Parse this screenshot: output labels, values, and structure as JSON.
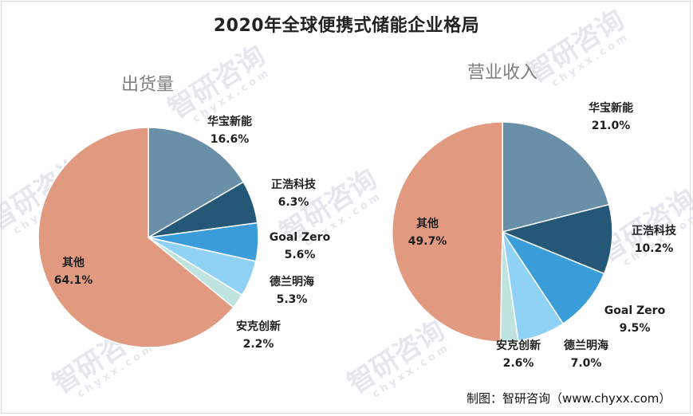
{
  "title": "2020年全球便携式储能企业格局",
  "source": "制图：智研咨询（www.chyxx.com）",
  "watermark": {
    "cn": "智研咨询",
    "en": "chyxx.com"
  },
  "chart_data": [
    {
      "type": "pie",
      "title": "出货量",
      "start_angle_deg": 0,
      "direction": "clockwise",
      "slices": [
        {
          "label": "华宝新能",
          "value": 16.6,
          "display": "16.6%",
          "color": "#6a8fa8"
        },
        {
          "label": "正浩科技",
          "value": 6.3,
          "display": "6.3%",
          "color": "#255777"
        },
        {
          "label": "Goal Zero",
          "value": 5.6,
          "display": "5.6%",
          "color": "#3a9dd9"
        },
        {
          "label": "德兰明海",
          "value": 5.3,
          "display": "5.3%",
          "color": "#8fd2f6"
        },
        {
          "label": "安克创新",
          "value": 2.2,
          "display": "2.2%",
          "color": "#bfe3df"
        },
        {
          "label": "其他",
          "value": 64.1,
          "display": "64.1%",
          "color": "#e19a80"
        }
      ]
    },
    {
      "type": "pie",
      "title": "营业收入",
      "start_angle_deg": 0,
      "direction": "clockwise",
      "slices": [
        {
          "label": "华宝新能",
          "value": 21.0,
          "display": "21.0%",
          "color": "#6a8fa8"
        },
        {
          "label": "正浩科技",
          "value": 10.2,
          "display": "10.2%",
          "color": "#255777"
        },
        {
          "label": "Goal Zero",
          "value": 9.5,
          "display": "9.5%",
          "color": "#3a9dd9"
        },
        {
          "label": "德兰明海",
          "value": 7.0,
          "display": "7.0%",
          "color": "#8fd2f6"
        },
        {
          "label": "安克创新",
          "value": 2.6,
          "display": "2.6%",
          "color": "#bfe3df"
        },
        {
          "label": "其他",
          "value": 49.7,
          "display": "49.7%",
          "color": "#e19a80"
        }
      ]
    }
  ]
}
